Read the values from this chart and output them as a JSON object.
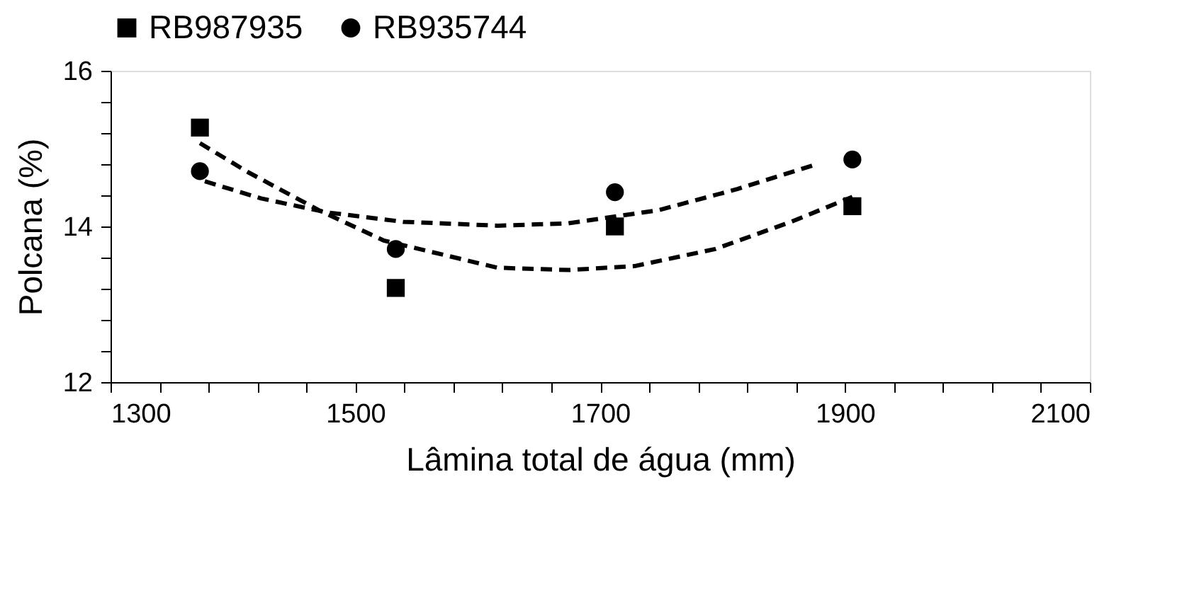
{
  "chart_data": {
    "type": "scatter",
    "xlabel": "Lâmina total de água (mm)",
    "ylabel": "Polcana (%)",
    "series": [
      {
        "name": "RB987935",
        "marker": "square",
        "color": "#000000",
        "x": [
          1373,
          1533,
          1712,
          1906
        ],
        "values": [
          15.27,
          13.21,
          14.0,
          14.26
        ]
      },
      {
        "name": "RB935744",
        "marker": "circle",
        "color": "#000000",
        "x": [
          1373,
          1533,
          1712,
          1906
        ],
        "values": [
          14.71,
          13.71,
          14.44,
          14.86
        ]
      },
      {
        "type": "line",
        "line_style": "dashed",
        "marker": "none",
        "color": "#000000",
        "x": [
          1373,
          1412,
          1470,
          1523,
          1616,
          1674,
          1728,
          1794,
          1856,
          1906
        ],
        "values": [
          15.07,
          14.7,
          14.21,
          13.82,
          13.47,
          13.44,
          13.49,
          13.71,
          14.06,
          14.38
        ]
      },
      {
        "type": "line",
        "line_style": "dashed",
        "marker": "none",
        "color": "#000000",
        "x": [
          1377,
          1423,
          1477,
          1539,
          1616,
          1674,
          1748,
          1812,
          1877
        ],
        "values": [
          14.58,
          14.36,
          14.18,
          14.06,
          14.01,
          14.04,
          14.21,
          14.48,
          14.8
        ]
      }
    ],
    "xlim": [
      1300,
      2100
    ],
    "xticks": [
      1300,
      {
        "value": 1340,
        "label": null
      },
      {
        "value": 1380,
        "label": null
      },
      {
        "value": 1420,
        "label": null
      },
      {
        "value": 1460,
        "label": null
      },
      1500,
      {
        "value": 1540,
        "label": null
      },
      {
        "value": 1580,
        "label": null
      },
      {
        "value": 1620,
        "label": null
      },
      {
        "value": 1660,
        "label": null
      },
      1700,
      {
        "value": 1740,
        "label": null
      },
      {
        "value": 1780,
        "label": null
      },
      {
        "value": 1820,
        "label": null
      },
      {
        "value": 1860,
        "label": null
      },
      1900,
      {
        "value": 1940,
        "label": null
      },
      {
        "value": 1980,
        "label": null
      },
      {
        "value": 2020,
        "label": null
      },
      {
        "value": 2060,
        "label": null
      },
      2100
    ],
    "ylim": [
      12,
      16
    ],
    "yticks": [
      12,
      {
        "value": 12.4,
        "label": null
      },
      {
        "value": 12.8,
        "label": null
      },
      {
        "value": 13.2,
        "label": null
      },
      {
        "value": 13.6,
        "label": null
      },
      14,
      {
        "value": 14.4,
        "label": null
      },
      {
        "value": 14.8,
        "label": null
      },
      {
        "value": 15.2,
        "label": null
      },
      {
        "value": 15.6,
        "label": null
      },
      16
    ],
    "grid": false,
    "legend": "top"
  }
}
